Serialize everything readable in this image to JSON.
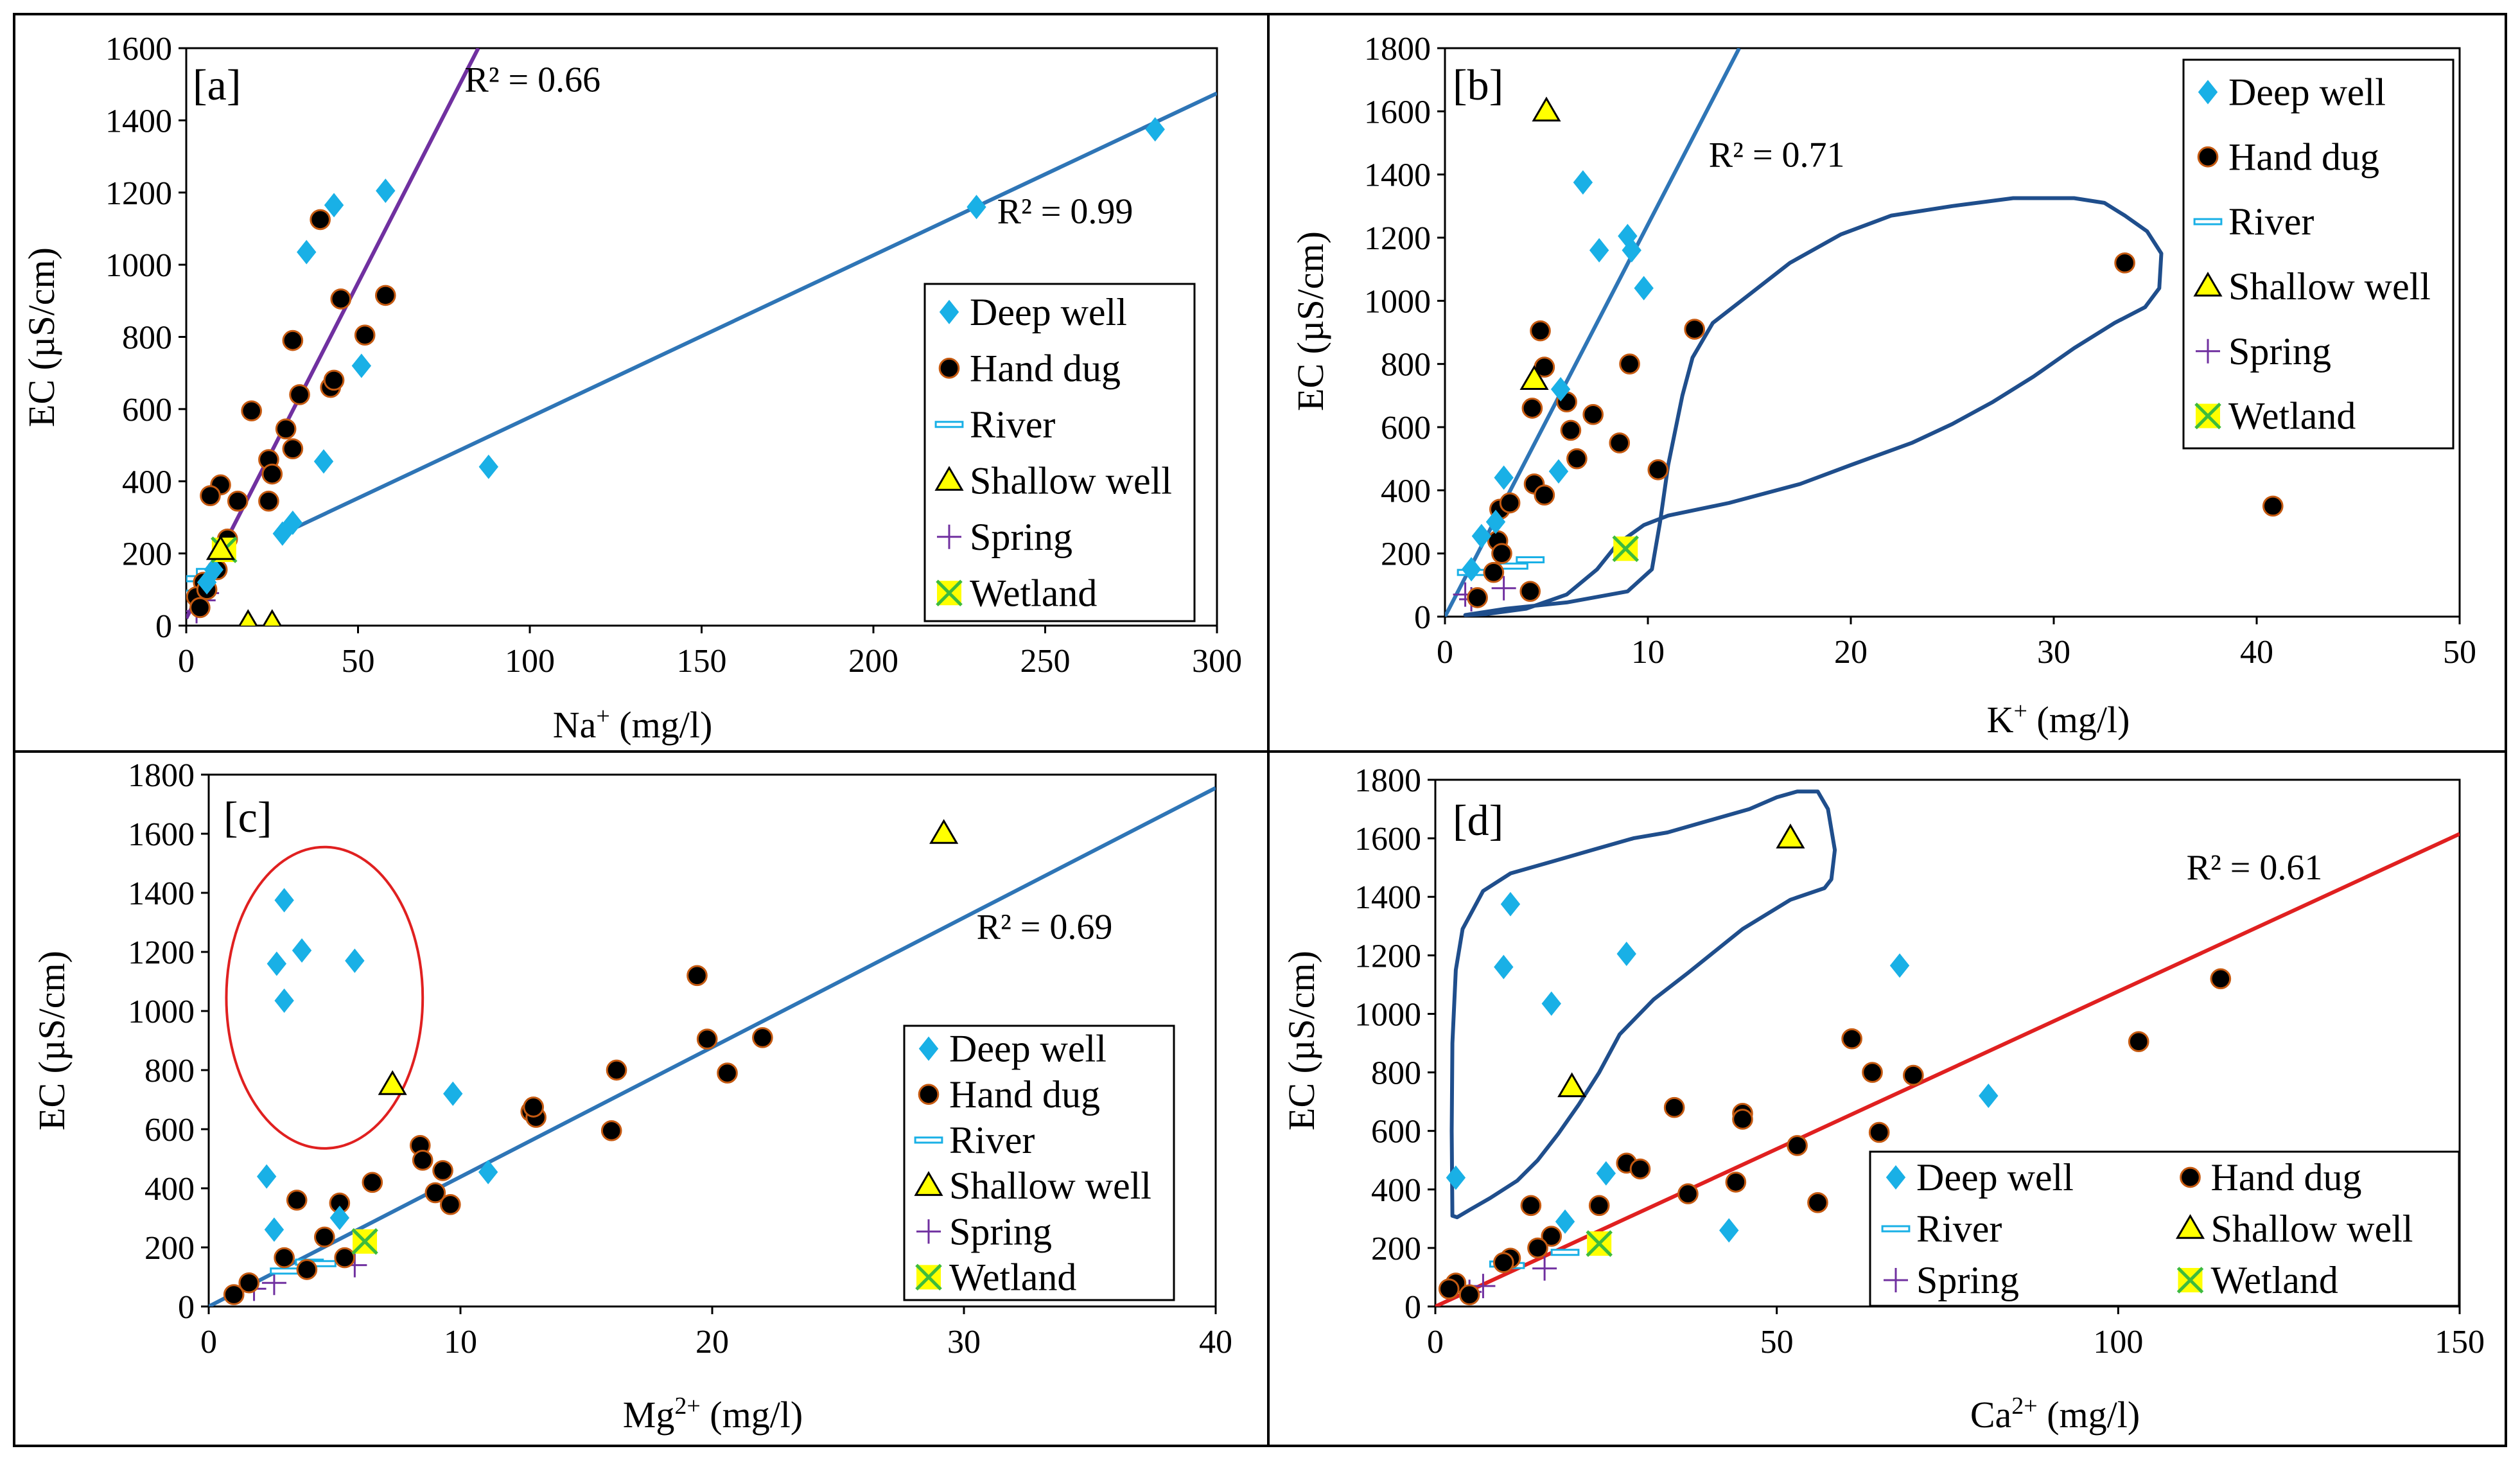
{
  "figure": {
    "title": ""
  },
  "chart_data": [
    {
      "panel": "[a]",
      "type": "scatter",
      "xlabel": "Na",
      "xlabel_sup": "+",
      "xlabel_unit": " (mg/l)",
      "ylabel": "EC (µS/cm)",
      "xlim": [
        0,
        300
      ],
      "ylim": [
        0,
        1600
      ],
      "xticks": [
        "0",
        "50",
        "100",
        "150",
        "200",
        "250",
        "300"
      ],
      "yticks": [
        "0",
        "200",
        "400",
        "600",
        "800",
        "1000",
        "1200",
        "1400",
        "1600"
      ],
      "legend": [
        "Deep well",
        "Hand dug",
        "River",
        "Shallow well",
        "Spring",
        "Wetland"
      ],
      "annotations": [
        {
          "text": "R² = 0.66",
          "x": 81,
          "y": 1480
        },
        {
          "text": "R² = 0.99",
          "x": 236,
          "y": 1115
        }
      ],
      "trendlines": [
        {
          "color": "#7030a0",
          "x": [
            0,
            85
          ],
          "y": [
            20,
            1600
          ]
        },
        {
          "color": "#2e75b6",
          "x": [
            27,
            300
          ],
          "y": [
            250,
            1475
          ]
        }
      ],
      "series": [
        {
          "name": "Deep well",
          "points": [
            [
              282,
              1375
            ],
            [
              230,
              1160
            ],
            [
              88,
              440
            ],
            [
              58,
              1205
            ],
            [
              43,
              1165
            ],
            [
              40,
              455
            ],
            [
              35,
              1035
            ],
            [
              51,
              720
            ],
            [
              31,
              285
            ],
            [
              28,
              255
            ],
            [
              8,
              155
            ],
            [
              6,
              120
            ]
          ]
        },
        {
          "name": "Hand dug",
          "points": [
            [
              39,
              1125
            ],
            [
              45,
              905
            ],
            [
              58,
              915
            ],
            [
              52,
              805
            ],
            [
              31,
              790
            ],
            [
              33,
              640
            ],
            [
              42,
              660
            ],
            [
              43,
              680
            ],
            [
              19,
              595
            ],
            [
              29,
              545
            ],
            [
              31,
              490
            ],
            [
              24,
              460
            ],
            [
              25,
              420
            ],
            [
              24,
              345
            ],
            [
              10,
              390
            ],
            [
              7,
              360
            ],
            [
              15,
              345
            ],
            [
              12,
              240
            ],
            [
              9,
              155
            ],
            [
              5,
              120
            ],
            [
              3,
              80
            ],
            [
              4,
              50
            ],
            [
              6,
              100
            ]
          ]
        },
        {
          "name": "River",
          "points": [
            [
              2,
              90
            ],
            [
              4,
              130
            ],
            [
              7,
              150
            ]
          ]
        },
        {
          "name": "Shallow well",
          "points": [
            [
              18,
              5
            ],
            [
              25,
              5
            ],
            [
              10,
              210
            ]
          ]
        },
        {
          "name": "Spring",
          "points": [
            [
              3,
              40
            ],
            [
              5,
              70
            ],
            [
              6,
              90
            ]
          ]
        },
        {
          "name": "Wetland",
          "points": [
            [
              11,
              210
            ]
          ]
        }
      ]
    },
    {
      "panel": "[b]",
      "type": "scatter",
      "xlabel": "K",
      "xlabel_sup": "+",
      "xlabel_unit": " (mg/l)",
      "ylabel": "EC (µS/cm)",
      "xlim": [
        0,
        50
      ],
      "ylim": [
        0,
        1800
      ],
      "xticks": [
        "0",
        "10",
        "20",
        "30",
        "40",
        "50"
      ],
      "yticks": [
        "0",
        "200",
        "400",
        "600",
        "800",
        "1000",
        "1200",
        "1400",
        "1600",
        "1800"
      ],
      "legend": [
        "Deep well",
        "Hand dug",
        "River",
        "Shallow well",
        "Spring",
        "Wetland"
      ],
      "annotations": [
        {
          "text": "R² = 0.71",
          "x": 13,
          "y": 1425
        }
      ],
      "trendlines": [
        {
          "color": "#2e75b6",
          "x": [
            0,
            14.5
          ],
          "y": [
            0,
            1800
          ]
        }
      ],
      "series": [
        {
          "name": "Deep well",
          "points": [
            [
              6.8,
              1375
            ],
            [
              7.6,
              1160
            ],
            [
              9.0,
              1205
            ],
            [
              9.2,
              1160
            ],
            [
              9.8,
              1040
            ],
            [
              5.7,
              720
            ],
            [
              2.9,
              440
            ],
            [
              5.6,
              460
            ],
            [
              1.8,
              255
            ],
            [
              1.3,
              150
            ],
            [
              2.5,
              300
            ]
          ]
        },
        {
          "name": "Hand dug",
          "points": [
            [
              33.5,
              1120
            ],
            [
              40.8,
              350
            ],
            [
              12.3,
              910
            ],
            [
              4.7,
              905
            ],
            [
              9.1,
              800
            ],
            [
              4.9,
              790
            ],
            [
              6.0,
              680
            ],
            [
              7.3,
              640
            ],
            [
              4.3,
              660
            ],
            [
              6.2,
              590
            ],
            [
              8.6,
              550
            ],
            [
              10.5,
              465
            ],
            [
              6.5,
              500
            ],
            [
              4.4,
              420
            ],
            [
              4.9,
              385
            ],
            [
              2.7,
              340
            ],
            [
              3.2,
              360
            ],
            [
              2.6,
              240
            ],
            [
              2.8,
              200
            ],
            [
              2.4,
              140
            ],
            [
              4.2,
              80
            ],
            [
              1.6,
              60
            ]
          ]
        },
        {
          "name": "River",
          "points": [
            [
              1.3,
              140
            ],
            [
              4.2,
              180
            ],
            [
              3.4,
              160
            ]
          ]
        },
        {
          "name": "Shallow well",
          "points": [
            [
              5.0,
              1600
            ],
            [
              4.4,
              750
            ]
          ]
        },
        {
          "name": "Spring",
          "points": [
            [
              1.0,
              70
            ],
            [
              1.3,
              55
            ],
            [
              2.9,
              90
            ]
          ]
        },
        {
          "name": "Wetland",
          "points": [
            [
              8.9,
              215
            ]
          ]
        }
      ]
    },
    {
      "panel": "[c]",
      "type": "scatter",
      "xlabel": "Mg",
      "xlabel_sup": "2+",
      "xlabel_unit": " (mg/l)",
      "ylabel": "EC (µS/cm)",
      "xlim": [
        0,
        40
      ],
      "ylim": [
        0,
        1800
      ],
      "xticks": [
        "0",
        "10",
        "20",
        "30",
        "40"
      ],
      "yticks": [
        "0",
        "200",
        "400",
        "600",
        "800",
        "1000",
        "1200",
        "1400",
        "1600",
        "1800"
      ],
      "legend": [
        "Deep well",
        "Hand dug",
        "River",
        "Shallow well",
        "Spring",
        "Wetland"
      ],
      "annotations": [
        {
          "text": "R² = 0.69",
          "x": 30.5,
          "y": 1245
        }
      ],
      "trendlines": [
        {
          "color": "#2e75b6",
          "x": [
            0,
            40
          ],
          "y": [
            0,
            1755
          ]
        }
      ],
      "series": [
        {
          "name": "Deep well",
          "points": [
            [
              3.0,
              1375
            ],
            [
              3.7,
              1205
            ],
            [
              2.7,
              1160
            ],
            [
              5.8,
              1170
            ],
            [
              3.0,
              1035
            ],
            [
              9.7,
              720
            ],
            [
              2.3,
              440
            ],
            [
              11.1,
              455
            ],
            [
              2.6,
              260
            ],
            [
              5.2,
              300
            ]
          ]
        },
        {
          "name": "Hand dug",
          "points": [
            [
              19.4,
              1120
            ],
            [
              22.0,
              910
            ],
            [
              19.8,
              905
            ],
            [
              20.6,
              790
            ],
            [
              16.2,
              800
            ],
            [
              12.8,
              660
            ],
            [
              13.0,
              640
            ],
            [
              12.9,
              675
            ],
            [
              8.4,
              545
            ],
            [
              8.5,
              495
            ],
            [
              9.3,
              460
            ],
            [
              16.0,
              595
            ],
            [
              9.0,
              385
            ],
            [
              9.6,
              345
            ],
            [
              6.5,
              420
            ],
            [
              5.2,
              350
            ],
            [
              3.5,
              360
            ],
            [
              5.4,
              165
            ],
            [
              4.6,
              235
            ],
            [
              3.0,
              165
            ],
            [
              3.9,
              125
            ],
            [
              1.6,
              80
            ],
            [
              1.0,
              40
            ]
          ]
        },
        {
          "name": "River",
          "points": [
            [
              4.0,
              150
            ],
            [
              4.5,
              145
            ],
            [
              3.0,
              120
            ]
          ]
        },
        {
          "name": "Shallow well",
          "points": [
            [
              29.2,
              1600
            ],
            [
              7.3,
              750
            ]
          ]
        },
        {
          "name": "Spring",
          "points": [
            [
              5.8,
              140
            ],
            [
              2.6,
              80
            ],
            [
              1.8,
              60
            ]
          ]
        },
        {
          "name": "Wetland",
          "points": [
            [
              6.2,
              220
            ]
          ]
        }
      ]
    },
    {
      "panel": "[d]",
      "type": "scatter",
      "xlabel": "Ca",
      "xlabel_sup": "2+",
      "xlabel_unit": " (mg/l)",
      "ylabel": "EC (µS/cm)",
      "xlim": [
        0,
        150
      ],
      "ylim": [
        0,
        1800
      ],
      "xticks": [
        "0",
        "50",
        "100",
        "150"
      ],
      "yticks": [
        "0",
        "200",
        "400",
        "600",
        "800",
        "1000",
        "1200",
        "1400",
        "1600",
        "1800"
      ],
      "legend": [
        "Deep well",
        "Hand dug",
        "River",
        "Shallow well",
        "Spring",
        "Wetland"
      ],
      "annotations": [
        {
          "text": "R² = 0.61",
          "x": 110,
          "y": 1460
        }
      ],
      "trendlines": [
        {
          "color": "#e02020",
          "x": [
            0,
            150
          ],
          "y": [
            0,
            1615
          ]
        }
      ],
      "series": [
        {
          "name": "Deep well",
          "points": [
            [
              11,
              1375
            ],
            [
              28,
              1205
            ],
            [
              10,
              1160
            ],
            [
              68,
              1165
            ],
            [
              17,
              1035
            ],
            [
              81,
              720
            ],
            [
              3,
              440
            ],
            [
              25,
              455
            ],
            [
              43,
              260
            ],
            [
              19,
              290
            ]
          ]
        },
        {
          "name": "Hand dug",
          "points": [
            [
              115,
              1120
            ],
            [
              103,
              905
            ],
            [
              61,
              915
            ],
            [
              70,
              790
            ],
            [
              64,
              800
            ],
            [
              65,
              595
            ],
            [
              35,
              680
            ],
            [
              45,
              660
            ],
            [
              45,
              640
            ],
            [
              28,
              490
            ],
            [
              30,
              470
            ],
            [
              53,
              550
            ],
            [
              44,
              425
            ],
            [
              37,
              385
            ],
            [
              56,
              355
            ],
            [
              14,
              345
            ],
            [
              24,
              345
            ],
            [
              17,
              240
            ],
            [
              11,
              165
            ],
            [
              10,
              150
            ],
            [
              15,
              200
            ],
            [
              3,
              80
            ],
            [
              2,
              60
            ],
            [
              5,
              40
            ]
          ]
        },
        {
          "name": "River",
          "points": [
            [
              10,
              145
            ],
            [
              11,
              140
            ],
            [
              19,
              185
            ]
          ]
        },
        {
          "name": "Shallow well",
          "points": [
            [
              52,
              1600
            ],
            [
              20,
              750
            ]
          ]
        },
        {
          "name": "Spring",
          "points": [
            [
              16,
              130
            ],
            [
              7,
              70
            ],
            [
              5,
              50
            ]
          ]
        },
        {
          "name": "Wetland",
          "points": [
            [
              24,
              215
            ]
          ]
        }
      ]
    }
  ]
}
